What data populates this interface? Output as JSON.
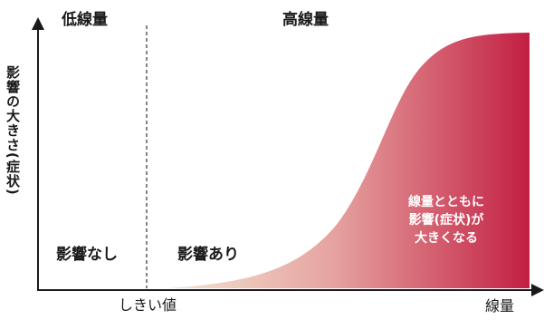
{
  "regions": {
    "low_dose": "低線量",
    "high_dose": "高線量"
  },
  "axes": {
    "y_label": "影響の大きさ(症状)",
    "x_label": "線量",
    "threshold_label": "しきい値"
  },
  "zones": {
    "no_effect": "影響なし",
    "has_effect": "影響あり"
  },
  "annotation": {
    "lines": [
      "線量とともに",
      "影響(症状)が",
      "大きくなる"
    ]
  },
  "colors": {
    "curve_start": "#f2e2cf",
    "curve_end": "#c21f42",
    "axis": "#1a1a1a",
    "threshold_line": "#333333"
  },
  "chart_data": {
    "type": "area",
    "curve": "sigmoid",
    "x_range": [
      0,
      10
    ],
    "y_range": [
      0,
      10
    ],
    "threshold_x": 2
  }
}
